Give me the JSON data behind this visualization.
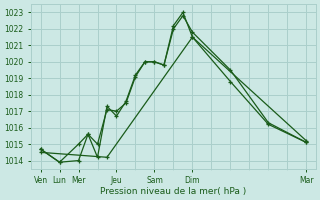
{
  "background_color": "#cce8e4",
  "grid_color": "#aacfcb",
  "line_color": "#1a5c1a",
  "xlabel": "Pression niveau de la mer( hPa )",
  "ylim": [
    1013.5,
    1023.5
  ],
  "yticks": [
    1014,
    1015,
    1016,
    1017,
    1018,
    1019,
    1020,
    1021,
    1022,
    1023
  ],
  "day_positions": [
    0,
    1,
    2,
    4,
    6,
    8,
    14
  ],
  "day_labels": [
    "Ven",
    "Lun",
    "Mer",
    "Jeu",
    "Sam",
    "Dim",
    "Mar"
  ],
  "grid_x_positions": [
    0,
    1,
    2,
    3,
    4,
    5,
    6,
    7,
    8,
    9,
    10,
    11,
    12,
    13,
    14
  ],
  "series1_x": [
    0,
    1,
    2,
    2.5,
    3,
    3.5,
    4,
    4.5,
    5,
    5.5,
    6,
    6.5,
    7,
    7.5,
    8,
    10,
    12,
    14
  ],
  "series1_y": [
    1014.7,
    1013.9,
    1014.0,
    1015.6,
    1015.0,
    1017.1,
    1017.0,
    1017.5,
    1019.1,
    1020.0,
    1020.0,
    1019.8,
    1022.2,
    1023.0,
    1021.5,
    1018.8,
    1016.2,
    1015.1
  ],
  "series2_x": [
    0,
    1,
    2,
    2.5,
    3,
    3.5,
    4,
    4.5,
    5,
    5.5,
    6,
    6.5,
    7,
    7.5,
    8,
    10,
    12,
    14
  ],
  "series2_y": [
    1014.7,
    1013.9,
    1015.0,
    1015.6,
    1014.2,
    1017.3,
    1016.7,
    1017.6,
    1019.2,
    1020.0,
    1020.0,
    1019.8,
    1022.0,
    1022.8,
    1021.8,
    1019.5,
    1016.3,
    1015.1
  ],
  "series3_x": [
    0,
    3.5,
    8,
    14
  ],
  "series3_y": [
    1014.5,
    1014.2,
    1021.5,
    1015.2
  ]
}
